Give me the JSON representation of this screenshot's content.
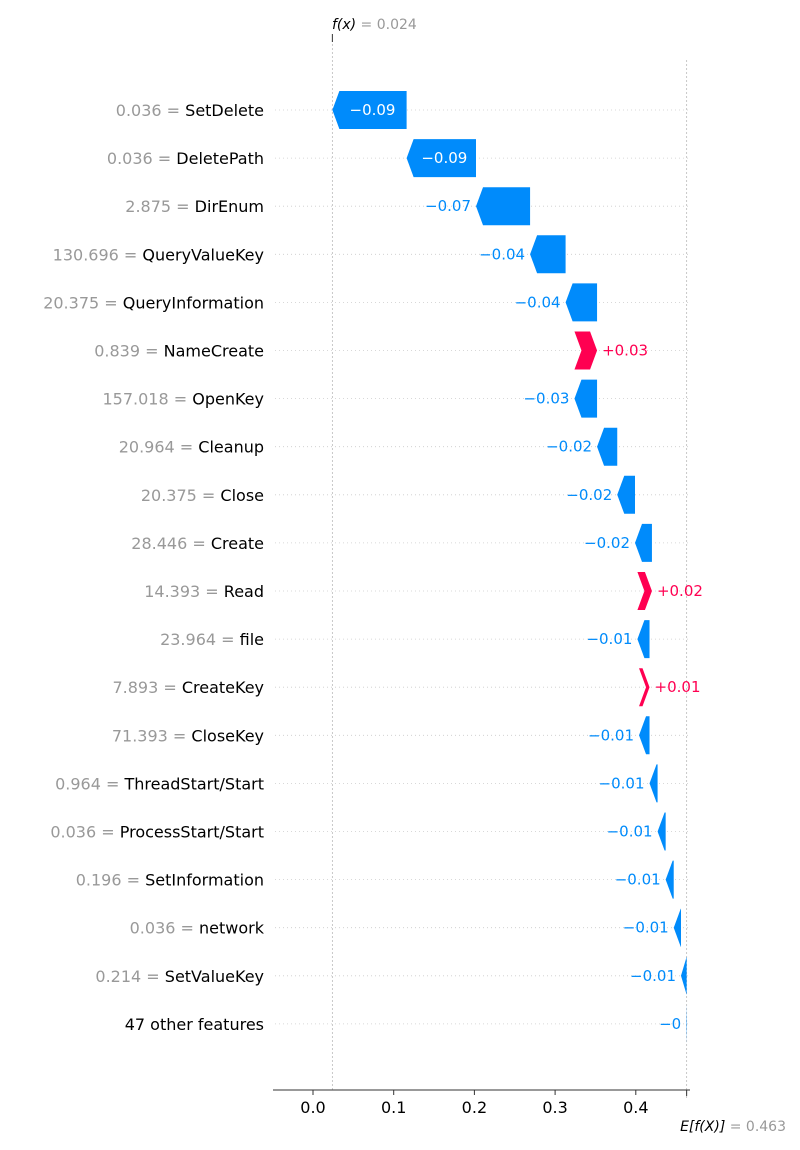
{
  "chart_data": {
    "type": "waterfall",
    "top_label": {
      "expr": "f(x)",
      "equals": "= 0.024",
      "value": 0.024
    },
    "bottom_label": {
      "expr": "E[f(X)]",
      "equals": "= 0.463",
      "value": 0.463
    },
    "xlim": [
      -0.05,
      0.47
    ],
    "x_ticks": [
      0.0,
      0.1,
      0.2,
      0.3,
      0.4
    ],
    "x_tick_labels": [
      "0.0",
      "0.1",
      "0.2",
      "0.3",
      "0.4"
    ],
    "colors": {
      "negative": "#008bfb",
      "positive": "#ff0051",
      "muted": "#999999"
    },
    "features": [
      {
        "value": "0.036",
        "name": "SetDelete",
        "contribution": -0.09,
        "label": "−0.09",
        "start": 0.116,
        "end": 0.024
      },
      {
        "value": "0.036",
        "name": "DeletePath",
        "contribution": -0.09,
        "label": "−0.09",
        "start": 0.202,
        "end": 0.116
      },
      {
        "value": "2.875",
        "name": "DirEnum",
        "contribution": -0.07,
        "label": "−0.07",
        "start": 0.269,
        "end": 0.202
      },
      {
        "value": "130.696",
        "name": "QueryValueKey",
        "contribution": -0.04,
        "label": "−0.04",
        "start": 0.313,
        "end": 0.269
      },
      {
        "value": "20.375",
        "name": "QueryInformation",
        "contribution": -0.04,
        "label": "−0.04",
        "start": 0.352,
        "end": 0.313
      },
      {
        "value": "0.839",
        "name": "NameCreate",
        "contribution": 0.03,
        "label": "+0.03",
        "start": 0.324,
        "end": 0.352
      },
      {
        "value": "157.018",
        "name": "OpenKey",
        "contribution": -0.03,
        "label": "−0.03",
        "start": 0.352,
        "end": 0.324
      },
      {
        "value": "20.964",
        "name": "Cleanup",
        "contribution": -0.02,
        "label": "−0.02",
        "start": 0.377,
        "end": 0.352
      },
      {
        "value": "20.375",
        "name": "Close",
        "contribution": -0.02,
        "label": "−0.02",
        "start": 0.399,
        "end": 0.377
      },
      {
        "value": "28.446",
        "name": "Create",
        "contribution": -0.02,
        "label": "−0.02",
        "start": 0.42,
        "end": 0.399
      },
      {
        "value": "14.393",
        "name": "Read",
        "contribution": 0.02,
        "label": "+0.02",
        "start": 0.402,
        "end": 0.42
      },
      {
        "value": "23.964",
        "name": "file",
        "contribution": -0.01,
        "label": "−0.01",
        "start": 0.417,
        "end": 0.402
      },
      {
        "value": "7.893",
        "name": "CreateKey",
        "contribution": 0.01,
        "label": "+0.01",
        "start": 0.404,
        "end": 0.417
      },
      {
        "value": "71.393",
        "name": "CloseKey",
        "contribution": -0.01,
        "label": "−0.01",
        "start": 0.417,
        "end": 0.404
      },
      {
        "value": "0.964",
        "name": "ThreadStart/Start",
        "contribution": -0.01,
        "label": "−0.01",
        "start": 0.427,
        "end": 0.417
      },
      {
        "value": "0.036",
        "name": "ProcessStart/Start",
        "contribution": -0.01,
        "label": "−0.01",
        "start": 0.437,
        "end": 0.427
      },
      {
        "value": "0.196",
        "name": "SetInformation",
        "contribution": -0.01,
        "label": "−0.01",
        "start": 0.447,
        "end": 0.437
      },
      {
        "value": "0.036",
        "name": "network",
        "contribution": -0.01,
        "label": "−0.01",
        "start": 0.456,
        "end": 0.447
      },
      {
        "value": "0.214",
        "name": "SetValueKey",
        "contribution": -0.01,
        "label": "−0.01",
        "start": 0.463,
        "end": 0.456
      },
      {
        "value": "",
        "name": "47 other features",
        "contribution": 0.0,
        "label": "−0",
        "start": 0.463,
        "end": 0.4625
      }
    ]
  }
}
